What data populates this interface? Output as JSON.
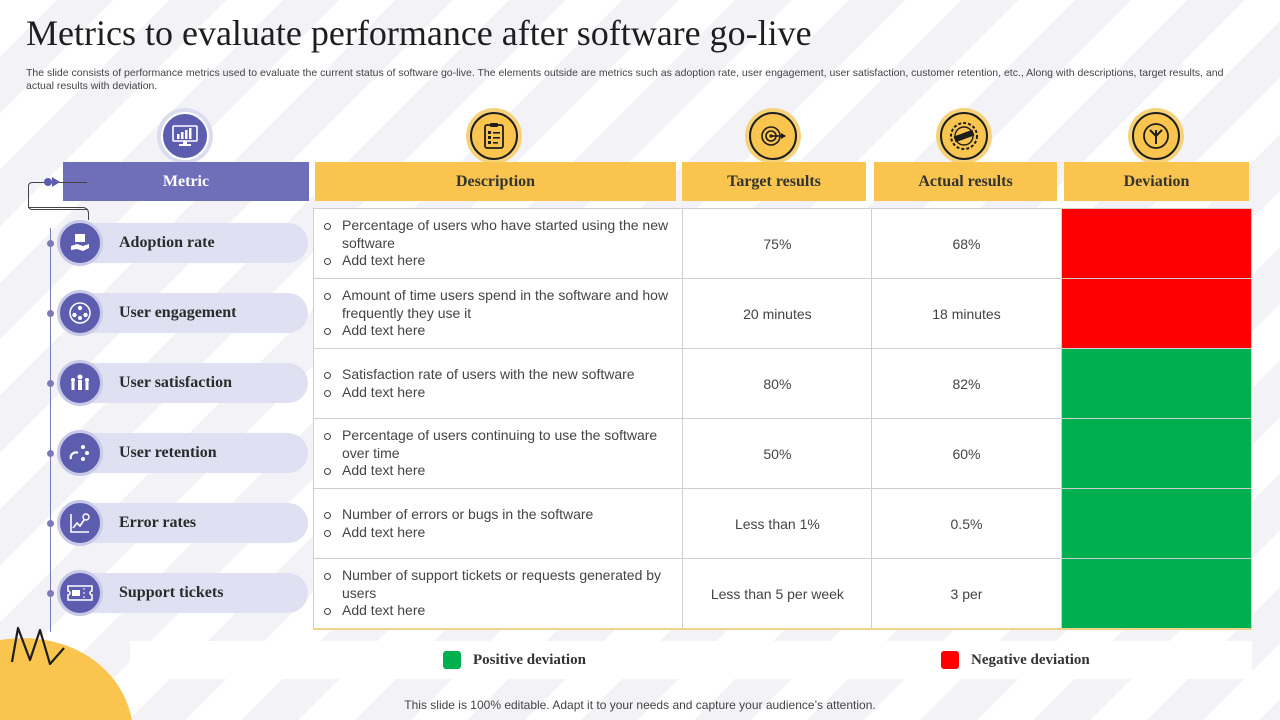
{
  "title": "Metrics to evaluate performance after software go-live",
  "subtitle": "The slide consists of performance metrics used to evaluate the current status of software go-live. The elements outside are metrics such as adoption rate, user engagement, user satisfaction, customer retention, etc., Along with descriptions, target results, and actual results with deviation.",
  "headers": {
    "metric": "Metric",
    "description": "Description",
    "target": "Target results",
    "actual": "Actual results",
    "deviation": "Deviation"
  },
  "header_icons": [
    "dashboard-icon",
    "checklist-icon",
    "target-icon",
    "actual-stamp-icon",
    "direction-sign-icon"
  ],
  "rows": [
    {
      "metric": "Adoption rate",
      "icon": "hand-stack-icon",
      "desc1": "Percentage of users who have started using the new software",
      "desc2": "Add text here",
      "target": "75%",
      "actual": "68%",
      "deviation": "negative"
    },
    {
      "metric": "User engagement",
      "icon": "people-network-icon",
      "desc1": "Amount of time users spend in the software and how frequently they use it",
      "desc2": "Add text here",
      "target": "20 minutes",
      "actual": "18 minutes",
      "deviation": "negative"
    },
    {
      "metric": "User satisfaction",
      "icon": "happy-users-icon",
      "desc1": "Satisfaction rate of users with the new software",
      "desc2": "Add text here",
      "target": "80%",
      "actual": "82%",
      "deviation": "positive"
    },
    {
      "metric": "User retention",
      "icon": "magnet-users-icon",
      "desc1": "Percentage of users continuing to use the software over time",
      "desc2": "Add text here",
      "target": "50%",
      "actual": "60%",
      "deviation": "positive"
    },
    {
      "metric": "Error rates",
      "icon": "error-chart-icon",
      "desc1": "Number of errors or bugs in the software",
      "desc2": "Add text here",
      "target": "Less than 1%",
      "actual": "0.5%",
      "deviation": "positive"
    },
    {
      "metric": "Support tickets",
      "icon": "ticket-icon",
      "desc1": "Number of support tickets or requests generated by users",
      "desc2": "Add text here",
      "target": "Less than 5 per week",
      "actual": "3 per",
      "deviation": "positive"
    }
  ],
  "colors": {
    "positive": "#00b050",
    "negative": "#ff0000",
    "purple": "#6e6eb9",
    "yellow": "#f9c54f"
  },
  "legend": {
    "positive": "Positive deviation",
    "negative": "Negative deviation"
  },
  "footer": "This slide is 100% editable. Adapt it to your needs and capture your audience’s attention."
}
